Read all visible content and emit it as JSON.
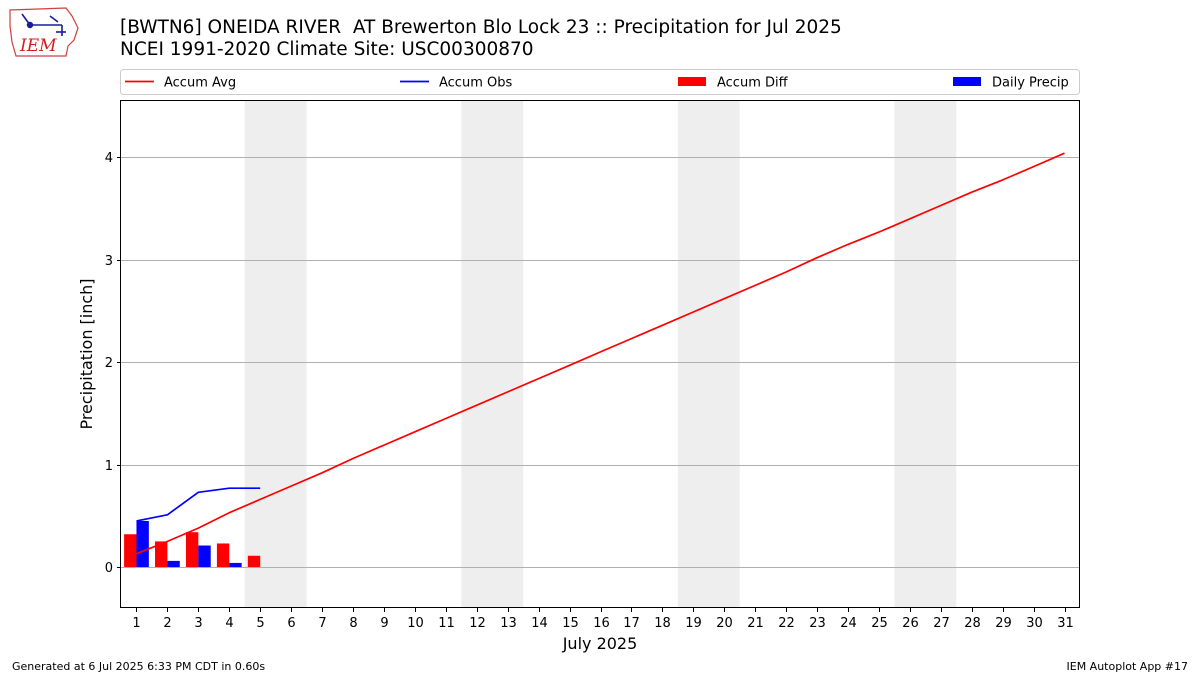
{
  "header": {
    "title_line1": "[BWTN6] ONEIDA RIVER  AT Brewerton Blo Lock 23 :: Precipitation for Jul 2025",
    "title_line2": "NCEI 1991-2020 Climate Site: USC00300870",
    "logo_text": "IEM"
  },
  "footer": {
    "left": "Generated at 6 Jul 2025 6:33 PM CDT in 0.60s",
    "right": "IEM Autoplot App #17"
  },
  "colors": {
    "accum_avg": "#ff0000",
    "accum_obs": "#0000ff",
    "accum_diff": "#ff0000",
    "daily_precip": "#0000ff",
    "weekend_shade": "#eeeeee",
    "grid": "#b0b0b0"
  },
  "chart_data": {
    "type": "line",
    "xlabel": "July 2025",
    "ylabel": "Precipitation [inch]",
    "xlim": [
      0.5,
      31.5
    ],
    "ylim": [
      -0.4,
      4.55
    ],
    "x_ticks": [
      1,
      2,
      3,
      4,
      5,
      6,
      7,
      8,
      9,
      10,
      11,
      12,
      13,
      14,
      15,
      16,
      17,
      18,
      19,
      20,
      21,
      22,
      23,
      24,
      25,
      26,
      27,
      28,
      29,
      30,
      31
    ],
    "y_ticks": [
      0,
      1,
      2,
      3,
      4
    ],
    "grid": "horizontal",
    "legend_position": "top",
    "weekend_days": [
      [
        5,
        6
      ],
      [
        12,
        13
      ],
      [
        19,
        20
      ],
      [
        26,
        27
      ]
    ],
    "legend": [
      "Accum Avg",
      "Accum Obs",
      "Accum Diff",
      "Daily Precip"
    ],
    "series": [
      {
        "name": "Accum Avg",
        "kind": "line",
        "x": [
          1,
          2,
          3,
          4,
          5,
          6,
          7,
          8,
          9,
          10,
          11,
          12,
          13,
          14,
          15,
          16,
          17,
          18,
          19,
          20,
          21,
          22,
          23,
          24,
          25,
          26,
          27,
          28,
          29,
          30,
          31
        ],
        "values": [
          0.13,
          0.25,
          0.38,
          0.53,
          0.66,
          0.79,
          0.92,
          1.06,
          1.19,
          1.32,
          1.45,
          1.58,
          1.71,
          1.84,
          1.97,
          2.1,
          2.23,
          2.36,
          2.49,
          2.62,
          2.75,
          2.88,
          3.02,
          3.15,
          3.27,
          3.4,
          3.53,
          3.66,
          3.78,
          3.91,
          4.04
        ]
      },
      {
        "name": "Accum Obs",
        "kind": "line",
        "x": [
          1,
          2,
          3,
          4,
          5
        ],
        "values": [
          0.45,
          0.51,
          0.73,
          0.77,
          0.77
        ]
      },
      {
        "name": "Accum Diff",
        "kind": "bar",
        "x": [
          1,
          2,
          3,
          4,
          5
        ],
        "values": [
          0.32,
          0.25,
          0.34,
          0.23,
          0.11
        ]
      },
      {
        "name": "Daily Precip",
        "kind": "bar",
        "x": [
          1,
          2,
          3,
          4,
          5
        ],
        "values": [
          0.45,
          0.06,
          0.21,
          0.04,
          0.0
        ]
      }
    ]
  }
}
